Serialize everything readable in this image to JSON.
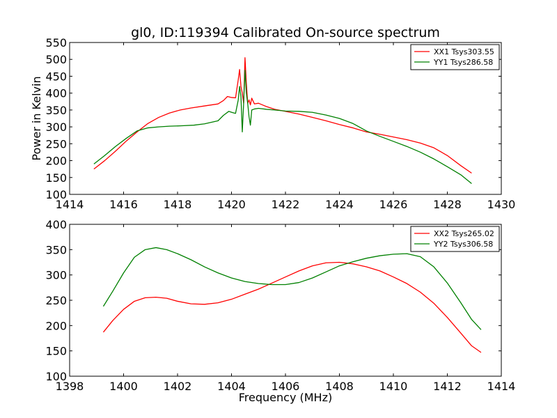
{
  "chart_data": [
    {
      "type": "line",
      "title": "gl0, ID:119394 Calibrated On-source spectrum",
      "xlabel": "",
      "ylabel": "Power in Kelvin",
      "xlim": [
        1414,
        1430
      ],
      "ylim": [
        100,
        550
      ],
      "xticks": [
        1414,
        1416,
        1418,
        1420,
        1422,
        1424,
        1426,
        1428,
        1430
      ],
      "yticks": [
        100,
        150,
        200,
        250,
        300,
        350,
        400,
        450,
        500,
        550
      ],
      "grid": false,
      "legend": "top-right",
      "series": [
        {
          "name": "XX1 Tsys303.55",
          "color": "#ff0000",
          "points": [
            [
              1414.9,
              175
            ],
            [
              1415.3,
              200
            ],
            [
              1415.7,
              228
            ],
            [
              1416.1,
              258
            ],
            [
              1416.5,
              285
            ],
            [
              1416.9,
              310
            ],
            [
              1417.3,
              328
            ],
            [
              1417.7,
              341
            ],
            [
              1418.1,
              350
            ],
            [
              1418.5,
              356
            ],
            [
              1419,
              362
            ],
            [
              1419.5,
              368
            ],
            [
              1419.7,
              378
            ],
            [
              1419.85,
              390
            ],
            [
              1420,
              387
            ],
            [
              1420.15,
              386
            ],
            [
              1420.25,
              440
            ],
            [
              1420.3,
              470
            ],
            [
              1420.35,
              420
            ],
            [
              1420.4,
              400
            ],
            [
              1420.45,
              370
            ],
            [
              1420.5,
              505
            ],
            [
              1420.55,
              430
            ],
            [
              1420.6,
              370
            ],
            [
              1420.65,
              380
            ],
            [
              1420.7,
              365
            ],
            [
              1420.75,
              385
            ],
            [
              1420.85,
              368
            ],
            [
              1421,
              370
            ],
            [
              1421.3,
              360
            ],
            [
              1421.6,
              352
            ],
            [
              1422,
              346
            ],
            [
              1422.5,
              338
            ],
            [
              1423,
              328
            ],
            [
              1423.5,
              318
            ],
            [
              1424,
              307
            ],
            [
              1424.5,
              297
            ],
            [
              1425,
              285
            ],
            [
              1425.5,
              278
            ],
            [
              1426,
              270
            ],
            [
              1426.5,
              262
            ],
            [
              1427,
              252
            ],
            [
              1427.5,
              238
            ],
            [
              1428,
              215
            ],
            [
              1428.5,
              185
            ],
            [
              1428.9,
              163
            ]
          ]
        },
        {
          "name": "YY1 Tsys286.58",
          "color": "#008000",
          "points": [
            [
              1414.9,
              190
            ],
            [
              1415.3,
              215
            ],
            [
              1415.7,
              242
            ],
            [
              1416.1,
              266
            ],
            [
              1416.5,
              288
            ],
            [
              1416.9,
              297
            ],
            [
              1417.3,
              300
            ],
            [
              1417.7,
              302
            ],
            [
              1418.1,
              303
            ],
            [
              1418.6,
              305
            ],
            [
              1419,
              309
            ],
            [
              1419.5,
              318
            ],
            [
              1419.7,
              334
            ],
            [
              1419.9,
              346
            ],
            [
              1420.05,
              342
            ],
            [
              1420.15,
              340
            ],
            [
              1420.25,
              380
            ],
            [
              1420.3,
              420
            ],
            [
              1420.35,
              390
            ],
            [
              1420.4,
              285
            ],
            [
              1420.45,
              370
            ],
            [
              1420.5,
              468
            ],
            [
              1420.55,
              400
            ],
            [
              1420.6,
              370
            ],
            [
              1420.65,
              330
            ],
            [
              1420.7,
              305
            ],
            [
              1420.75,
              350
            ],
            [
              1420.85,
              353
            ],
            [
              1421,
              355
            ],
            [
              1421.3,
              352
            ],
            [
              1421.6,
              350
            ],
            [
              1422,
              347
            ],
            [
              1422.5,
              346
            ],
            [
              1423,
              343
            ],
            [
              1423.5,
              335
            ],
            [
              1424,
              325
            ],
            [
              1424.5,
              310
            ],
            [
              1425,
              288
            ],
            [
              1425.5,
              272
            ],
            [
              1426,
              257
            ],
            [
              1426.5,
              242
            ],
            [
              1427,
              225
            ],
            [
              1427.5,
              205
            ],
            [
              1428,
              182
            ],
            [
              1428.5,
              158
            ],
            [
              1428.9,
              132
            ]
          ]
        }
      ]
    },
    {
      "type": "line",
      "title": "",
      "xlabel": "Frequency (MHz)",
      "ylabel": "",
      "xlim": [
        1398,
        1414
      ],
      "ylim": [
        100,
        400
      ],
      "xticks": [
        1398,
        1400,
        1402,
        1404,
        1406,
        1408,
        1410,
        1412,
        1414
      ],
      "yticks": [
        100,
        150,
        200,
        250,
        300,
        350,
        400
      ],
      "grid": false,
      "legend": "top-right",
      "series": [
        {
          "name": "XX2 Tsys265.02",
          "color": "#ff0000",
          "points": [
            [
              1399.25,
              187
            ],
            [
              1399.6,
              210
            ],
            [
              1400,
              232
            ],
            [
              1400.4,
              248
            ],
            [
              1400.8,
              255
            ],
            [
              1401.2,
              256
            ],
            [
              1401.6,
              254
            ],
            [
              1402,
              248
            ],
            [
              1402.5,
              243
            ],
            [
              1403,
              242
            ],
            [
              1403.5,
              245
            ],
            [
              1404,
              252
            ],
            [
              1404.5,
              262
            ],
            [
              1405,
              272
            ],
            [
              1405.5,
              284
            ],
            [
              1406,
              296
            ],
            [
              1406.5,
              308
            ],
            [
              1407,
              318
            ],
            [
              1407.5,
              324
            ],
            [
              1408,
              325
            ],
            [
              1408.5,
              322
            ],
            [
              1409,
              316
            ],
            [
              1409.5,
              308
            ],
            [
              1410,
              296
            ],
            [
              1410.5,
              283
            ],
            [
              1411,
              266
            ],
            [
              1411.5,
              244
            ],
            [
              1412,
              216
            ],
            [
              1412.5,
              185
            ],
            [
              1412.9,
              160
            ],
            [
              1413.25,
              147
            ]
          ]
        },
        {
          "name": "YY2 Tsys306.58",
          "color": "#008000",
          "points": [
            [
              1399.25,
              238
            ],
            [
              1399.6,
              268
            ],
            [
              1400,
              304
            ],
            [
              1400.4,
              335
            ],
            [
              1400.8,
              350
            ],
            [
              1401.2,
              354
            ],
            [
              1401.6,
              350
            ],
            [
              1402,
              342
            ],
            [
              1402.5,
              330
            ],
            [
              1403,
              316
            ],
            [
              1403.5,
              304
            ],
            [
              1404,
              294
            ],
            [
              1404.5,
              287
            ],
            [
              1405,
              283
            ],
            [
              1405.5,
              281
            ],
            [
              1406,
              281
            ],
            [
              1406.5,
              285
            ],
            [
              1407,
              294
            ],
            [
              1407.5,
              306
            ],
            [
              1408,
              318
            ],
            [
              1408.5,
              326
            ],
            [
              1409,
              333
            ],
            [
              1409.5,
              338
            ],
            [
              1410,
              341
            ],
            [
              1410.5,
              342
            ],
            [
              1411,
              336
            ],
            [
              1411.5,
              316
            ],
            [
              1412,
              284
            ],
            [
              1412.5,
              245
            ],
            [
              1412.9,
              212
            ],
            [
              1413.25,
              192
            ]
          ]
        }
      ]
    }
  ]
}
